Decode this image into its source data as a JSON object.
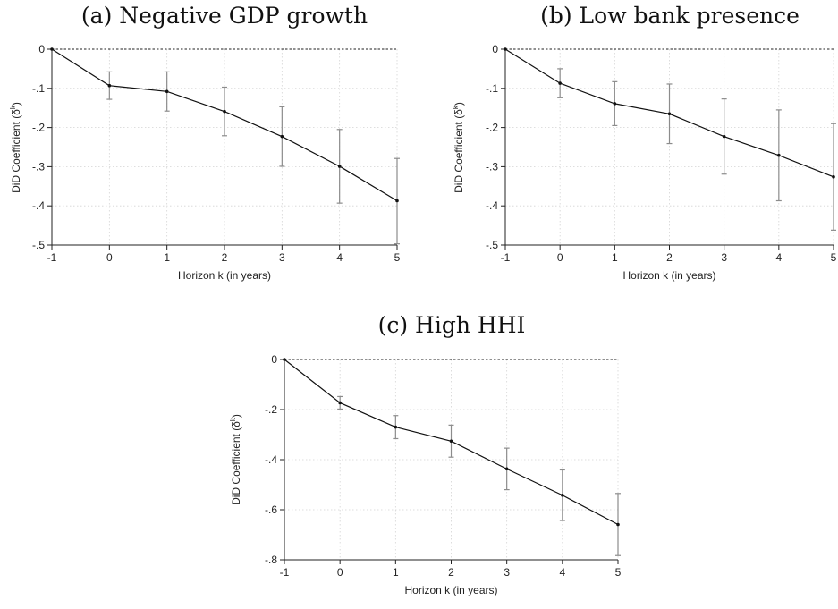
{
  "chart_data": [
    {
      "type": "line",
      "title": "(a) Negative GDP growth",
      "xlabel": "Horizon k (in years)",
      "ylabel": "DiD Coefficient (δ",
      "ylabel_sup": "k",
      "ylabel_close": ")",
      "x": [
        -1,
        0,
        1,
        2,
        3,
        4,
        5
      ],
      "xlim": [
        -1,
        5
      ],
      "xticks": [
        "-1",
        "0",
        "1",
        "2",
        "3",
        "4",
        "5"
      ],
      "ylim": [
        -0.5,
        0
      ],
      "yticks": [
        0,
        -0.1,
        -0.2,
        -0.3,
        -0.4,
        -0.5
      ],
      "ytick_labels": [
        "0",
        "-.1",
        "-.2",
        "-.3",
        "-.4",
        "-.5"
      ],
      "grid": true,
      "series": [
        {
          "values": [
            0,
            -0.093,
            -0.108,
            -0.159,
            -0.223,
            -0.299,
            -0.387
          ],
          "ci_low": [
            0,
            -0.128,
            -0.158,
            -0.221,
            -0.299,
            -0.393,
            -0.497
          ],
          "ci_high": [
            0,
            -0.058,
            -0.058,
            -0.097,
            -0.147,
            -0.205,
            -0.279
          ]
        }
      ]
    },
    {
      "type": "line",
      "title": "(b) Low bank presence",
      "xlabel": "Horizon k (in years)",
      "ylabel": "DiD Coefficient (δ",
      "ylabel_sup": "k",
      "ylabel_close": ")",
      "x": [
        -1,
        0,
        1,
        2,
        3,
        4,
        5
      ],
      "xlim": [
        -1,
        5
      ],
      "xticks": [
        "-1",
        "0",
        "1",
        "2",
        "3",
        "4",
        "5"
      ],
      "ylim": [
        -0.5,
        0
      ],
      "yticks": [
        0,
        -0.1,
        -0.2,
        -0.3,
        -0.4,
        -0.5
      ],
      "ytick_labels": [
        "0",
        "-.1",
        "-.2",
        "-.3",
        "-.4",
        "-.5"
      ],
      "grid": true,
      "series": [
        {
          "values": [
            0,
            -0.087,
            -0.139,
            -0.165,
            -0.223,
            -0.271,
            -0.326
          ],
          "ci_low": [
            0,
            -0.124,
            -0.195,
            -0.241,
            -0.319,
            -0.387,
            -0.462
          ],
          "ci_high": [
            0,
            -0.05,
            -0.083,
            -0.089,
            -0.127,
            -0.155,
            -0.19
          ]
        }
      ]
    },
    {
      "type": "line",
      "title": "(c) High HHI",
      "xlabel": "Horizon k (in years)",
      "ylabel": "DiD Coefficient (δ",
      "ylabel_sup": "k",
      "ylabel_close": ")",
      "x": [
        -1,
        0,
        1,
        2,
        3,
        4,
        5
      ],
      "xlim": [
        -1,
        5
      ],
      "xticks": [
        "-1",
        "0",
        "1",
        "2",
        "3",
        "4",
        "5"
      ],
      "ylim": [
        -0.8,
        0
      ],
      "yticks": [
        0,
        -0.2,
        -0.4,
        -0.6,
        -0.8
      ],
      "ytick_labels": [
        "0",
        "-.2",
        "-.4",
        "-.6",
        "-.8"
      ],
      "grid": true,
      "series": [
        {
          "values": [
            0,
            -0.173,
            -0.27,
            -0.326,
            -0.437,
            -0.542,
            -0.659
          ],
          "ci_low": [
            0,
            -0.198,
            -0.316,
            -0.39,
            -0.52,
            -0.643,
            -0.783
          ],
          "ci_high": [
            0,
            -0.148,
            -0.224,
            -0.262,
            -0.354,
            -0.441,
            -0.535
          ]
        }
      ]
    }
  ]
}
